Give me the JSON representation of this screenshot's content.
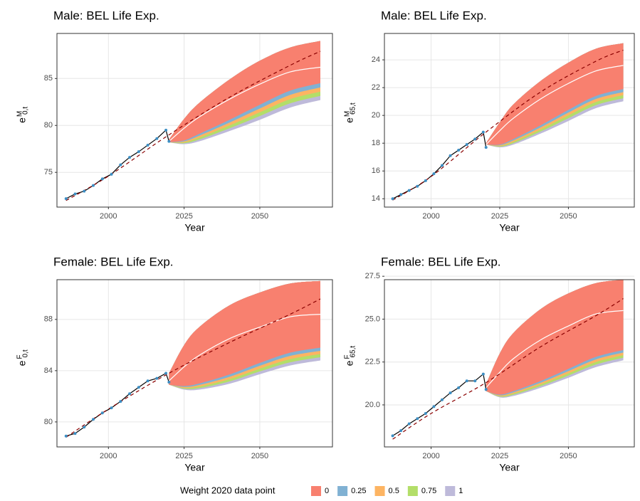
{
  "legend": {
    "title": "Weight 2020 data point",
    "entries": [
      {
        "name": "0",
        "color": "#F8806F"
      },
      {
        "name": "0.25",
        "color": "#80B1D3"
      },
      {
        "name": "0.5",
        "color": "#FDB462"
      },
      {
        "name": "0.75",
        "color": "#B3DE69"
      },
      {
        "name": "1",
        "color": "#BEBADA"
      }
    ]
  },
  "chart_data": [
    {
      "type": "fan",
      "title": "Male: BEL Life Exp.",
      "xlabel": "Year",
      "ylabel": {
        "base": "e",
        "sup": "M",
        "sub": "0,t"
      },
      "xlim": [
        1983,
        2074
      ],
      "xticks": [
        2000,
        2025,
        2050
      ],
      "ylim": [
        71.3,
        89.8
      ],
      "yticks": [
        75,
        80,
        85
      ],
      "grid": true,
      "x_observed": [
        1986,
        1989,
        1992,
        1995,
        1998,
        2001,
        2004,
        2007,
        2010,
        2013,
        2016,
        2019,
        2020
      ],
      "observed": [
        72.2,
        72.7,
        73.0,
        73.6,
        74.3,
        74.8,
        75.8,
        76.6,
        77.2,
        77.9,
        78.6,
        79.5,
        78.3
      ],
      "x_trend": [
        1986,
        2000,
        2020,
        2040,
        2060,
        2070
      ],
      "trend": [
        72.0,
        74.6,
        79.0,
        83.0,
        86.4,
        87.9
      ],
      "x_forecast": [
        2020,
        2025,
        2030,
        2040,
        2050,
        2060,
        2070
      ],
      "median": [
        78.3,
        79.7,
        80.9,
        82.8,
        84.4,
        85.7,
        86.2
      ],
      "bands": [
        {
          "upper": [
            78.5,
            80.7,
            82.4,
            84.9,
            86.9,
            88.3,
            89.0
          ],
          "lower": [
            78.2,
            78.4,
            79.1,
            80.6,
            82.2,
            83.7,
            84.5
          ]
        },
        {
          "upper": [
            78.5,
            80.7,
            82.4,
            84.9,
            86.9,
            88.3,
            89.0
          ],
          "lower": [
            78.2,
            78.3,
            78.9,
            80.3,
            81.8,
            83.25,
            84.05
          ]
        },
        {
          "upper": [
            78.5,
            80.7,
            82.4,
            84.9,
            86.9,
            88.3,
            89.0
          ],
          "lower": [
            78.2,
            78.2,
            78.7,
            80.0,
            81.4,
            82.8,
            83.6
          ]
        },
        {
          "upper": [
            78.5,
            80.7,
            82.4,
            84.9,
            86.9,
            88.3,
            89.0
          ],
          "lower": [
            78.2,
            78.1,
            78.5,
            79.7,
            81.0,
            82.35,
            83.15
          ]
        },
        {
          "upper": [
            78.5,
            80.7,
            82.4,
            84.9,
            86.9,
            88.3,
            89.0
          ],
          "lower": [
            78.2,
            78.0,
            78.3,
            79.4,
            80.6,
            81.9,
            82.7
          ]
        }
      ]
    },
    {
      "type": "fan",
      "title": "Male: BEL Life Exp.",
      "xlabel": "Year",
      "ylabel": {
        "base": "e",
        "sup": "M",
        "sub": "65,t"
      },
      "xlim": [
        1983,
        2074
      ],
      "xticks": [
        2000,
        2025,
        2050
      ],
      "ylim": [
        13.4,
        25.9
      ],
      "yticks": [
        14,
        16,
        18,
        20,
        22,
        24
      ],
      "grid": true,
      "x_observed": [
        1986,
        1989,
        1992,
        1995,
        1998,
        2001,
        2004,
        2007,
        2010,
        2013,
        2016,
        2019,
        2020
      ],
      "observed": [
        14.0,
        14.3,
        14.6,
        14.9,
        15.3,
        15.8,
        16.4,
        17.1,
        17.5,
        17.9,
        18.3,
        18.8,
        17.7
      ],
      "x_trend": [
        1986,
        2000,
        2020,
        2040,
        2060,
        2070
      ],
      "trend": [
        13.9,
        15.6,
        18.8,
        21.7,
        23.9,
        24.7
      ],
      "x_forecast": [
        2020,
        2025,
        2030,
        2040,
        2050,
        2060,
        2070
      ],
      "median": [
        17.9,
        18.9,
        19.8,
        21.2,
        22.3,
        23.2,
        23.6
      ],
      "bands": [
        {
          "upper": [
            18.0,
            19.5,
            20.8,
            22.5,
            23.8,
            24.8,
            25.2
          ],
          "lower": [
            17.9,
            17.9,
            18.3,
            19.3,
            20.4,
            21.4,
            21.9
          ]
        },
        {
          "upper": [
            18.0,
            19.5,
            20.8,
            22.5,
            23.8,
            24.8,
            25.2
          ],
          "lower": [
            17.9,
            17.85,
            18.2,
            19.15,
            20.2,
            21.18,
            21.68
          ]
        },
        {
          "upper": [
            18.0,
            19.5,
            20.8,
            22.5,
            23.8,
            24.8,
            25.2
          ],
          "lower": [
            17.9,
            17.8,
            18.1,
            19.0,
            20.0,
            20.96,
            21.46
          ]
        },
        {
          "upper": [
            18.0,
            19.5,
            20.8,
            22.5,
            23.8,
            24.8,
            25.2
          ],
          "lower": [
            17.9,
            17.75,
            18.0,
            18.85,
            19.8,
            20.74,
            21.24
          ]
        },
        {
          "upper": [
            18.0,
            19.5,
            20.8,
            22.5,
            23.8,
            24.8,
            25.2
          ],
          "lower": [
            17.9,
            17.7,
            17.9,
            18.7,
            19.6,
            20.52,
            21.02
          ]
        }
      ]
    },
    {
      "type": "fan",
      "title": "Female: BEL Life Exp.",
      "xlabel": "Year",
      "ylabel": {
        "base": "e",
        "sup": "F",
        "sub": "0,t"
      },
      "xlim": [
        1983,
        2074
      ],
      "xticks": [
        2000,
        2025,
        2050
      ],
      "ylim": [
        78.05,
        91.1
      ],
      "yticks": [
        80,
        84,
        88
      ],
      "grid": true,
      "x_observed": [
        1986,
        1989,
        1992,
        1995,
        1998,
        2001,
        2004,
        2007,
        2010,
        2013,
        2016,
        2019,
        2020
      ],
      "observed": [
        78.9,
        79.1,
        79.6,
        80.2,
        80.7,
        81.1,
        81.6,
        82.2,
        82.7,
        83.2,
        83.4,
        83.8,
        83.1
      ],
      "x_trend": [
        1986,
        2000,
        2020,
        2040,
        2060,
        2070
      ],
      "trend": [
        78.8,
        81.0,
        83.8,
        86.2,
        88.4,
        89.6
      ],
      "x_forecast": [
        2020,
        2025,
        2030,
        2040,
        2050,
        2060,
        2070
      ],
      "median": [
        83.2,
        84.3,
        85.2,
        86.5,
        87.4,
        88.2,
        88.4
      ],
      "bands": [
        {
          "upper": [
            83.8,
            86.0,
            87.4,
            89.1,
            90.1,
            90.8,
            91.0
          ],
          "lower": [
            82.9,
            82.8,
            83.0,
            83.7,
            84.6,
            85.4,
            85.8
          ]
        },
        {
          "upper": [
            83.8,
            86.0,
            87.4,
            89.1,
            90.1,
            90.8,
            91.0
          ],
          "lower": [
            82.9,
            82.73,
            82.88,
            83.52,
            84.38,
            85.15,
            85.55
          ]
        },
        {
          "upper": [
            83.8,
            86.0,
            87.4,
            89.1,
            90.1,
            90.8,
            91.0
          ],
          "lower": [
            82.9,
            82.66,
            82.76,
            83.34,
            84.16,
            84.9,
            85.3
          ]
        },
        {
          "upper": [
            83.8,
            86.0,
            87.4,
            89.1,
            90.1,
            90.8,
            91.0
          ],
          "lower": [
            82.9,
            82.59,
            82.64,
            83.16,
            83.94,
            84.65,
            85.05
          ]
        },
        {
          "upper": [
            83.8,
            86.0,
            87.4,
            89.1,
            90.1,
            90.8,
            91.0
          ],
          "lower": [
            82.9,
            82.52,
            82.52,
            82.98,
            83.72,
            84.4,
            84.8
          ]
        }
      ]
    },
    {
      "type": "fan",
      "title": "Female: BEL Life Exp.",
      "xlabel": "Year",
      "ylabel": {
        "base": "e",
        "sup": "F",
        "sub": "65,t"
      },
      "xlim": [
        1983,
        2074
      ],
      "xticks": [
        2000,
        2025,
        2050
      ],
      "ylim": [
        17.55,
        27.3
      ],
      "yticks": [
        {
          "value": 20,
          "label": "20.0"
        },
        {
          "value": 22.5,
          "label": "22.5"
        },
        {
          "value": 25,
          "label": "25.0"
        },
        {
          "value": 27.5,
          "label": "27.5"
        }
      ],
      "grid": true,
      "x_observed": [
        1986,
        1989,
        1992,
        1995,
        1998,
        2001,
        2004,
        2007,
        2010,
        2013,
        2016,
        2019,
        2020
      ],
      "observed": [
        18.2,
        18.5,
        18.9,
        19.2,
        19.5,
        19.9,
        20.3,
        20.7,
        21.0,
        21.4,
        21.4,
        21.8,
        20.9
      ],
      "x_trend": [
        1986,
        2000,
        2020,
        2040,
        2060,
        2070
      ],
      "trend": [
        18.0,
        19.5,
        21.3,
        23.4,
        25.2,
        26.2
      ],
      "x_forecast": [
        2020,
        2025,
        2030,
        2040,
        2050,
        2060,
        2070
      ],
      "median": [
        21.0,
        21.9,
        22.7,
        23.8,
        24.6,
        25.3,
        25.5
      ],
      "bands": [
        {
          "upper": [
            21.2,
            23.0,
            24.2,
            25.6,
            26.5,
            27.1,
            27.3
          ],
          "lower": [
            20.8,
            20.6,
            20.8,
            21.4,
            22.1,
            22.8,
            23.2
          ]
        },
        {
          "upper": [
            21.2,
            23.0,
            24.2,
            25.6,
            26.5,
            27.1,
            27.3
          ],
          "lower": [
            20.8,
            20.56,
            20.73,
            21.3,
            21.97,
            22.65,
            23.05
          ]
        },
        {
          "upper": [
            21.2,
            23.0,
            24.2,
            25.6,
            26.5,
            27.1,
            27.3
          ],
          "lower": [
            20.8,
            20.52,
            20.66,
            21.2,
            21.84,
            22.5,
            22.9
          ]
        },
        {
          "upper": [
            21.2,
            23.0,
            24.2,
            25.6,
            26.5,
            27.1,
            27.3
          ],
          "lower": [
            20.8,
            20.48,
            20.59,
            21.1,
            21.71,
            22.35,
            22.75
          ]
        },
        {
          "upper": [
            21.2,
            23.0,
            24.2,
            25.6,
            26.5,
            27.1,
            27.3
          ],
          "lower": [
            20.8,
            20.44,
            20.52,
            21.0,
            21.58,
            22.2,
            22.6
          ]
        }
      ]
    }
  ]
}
